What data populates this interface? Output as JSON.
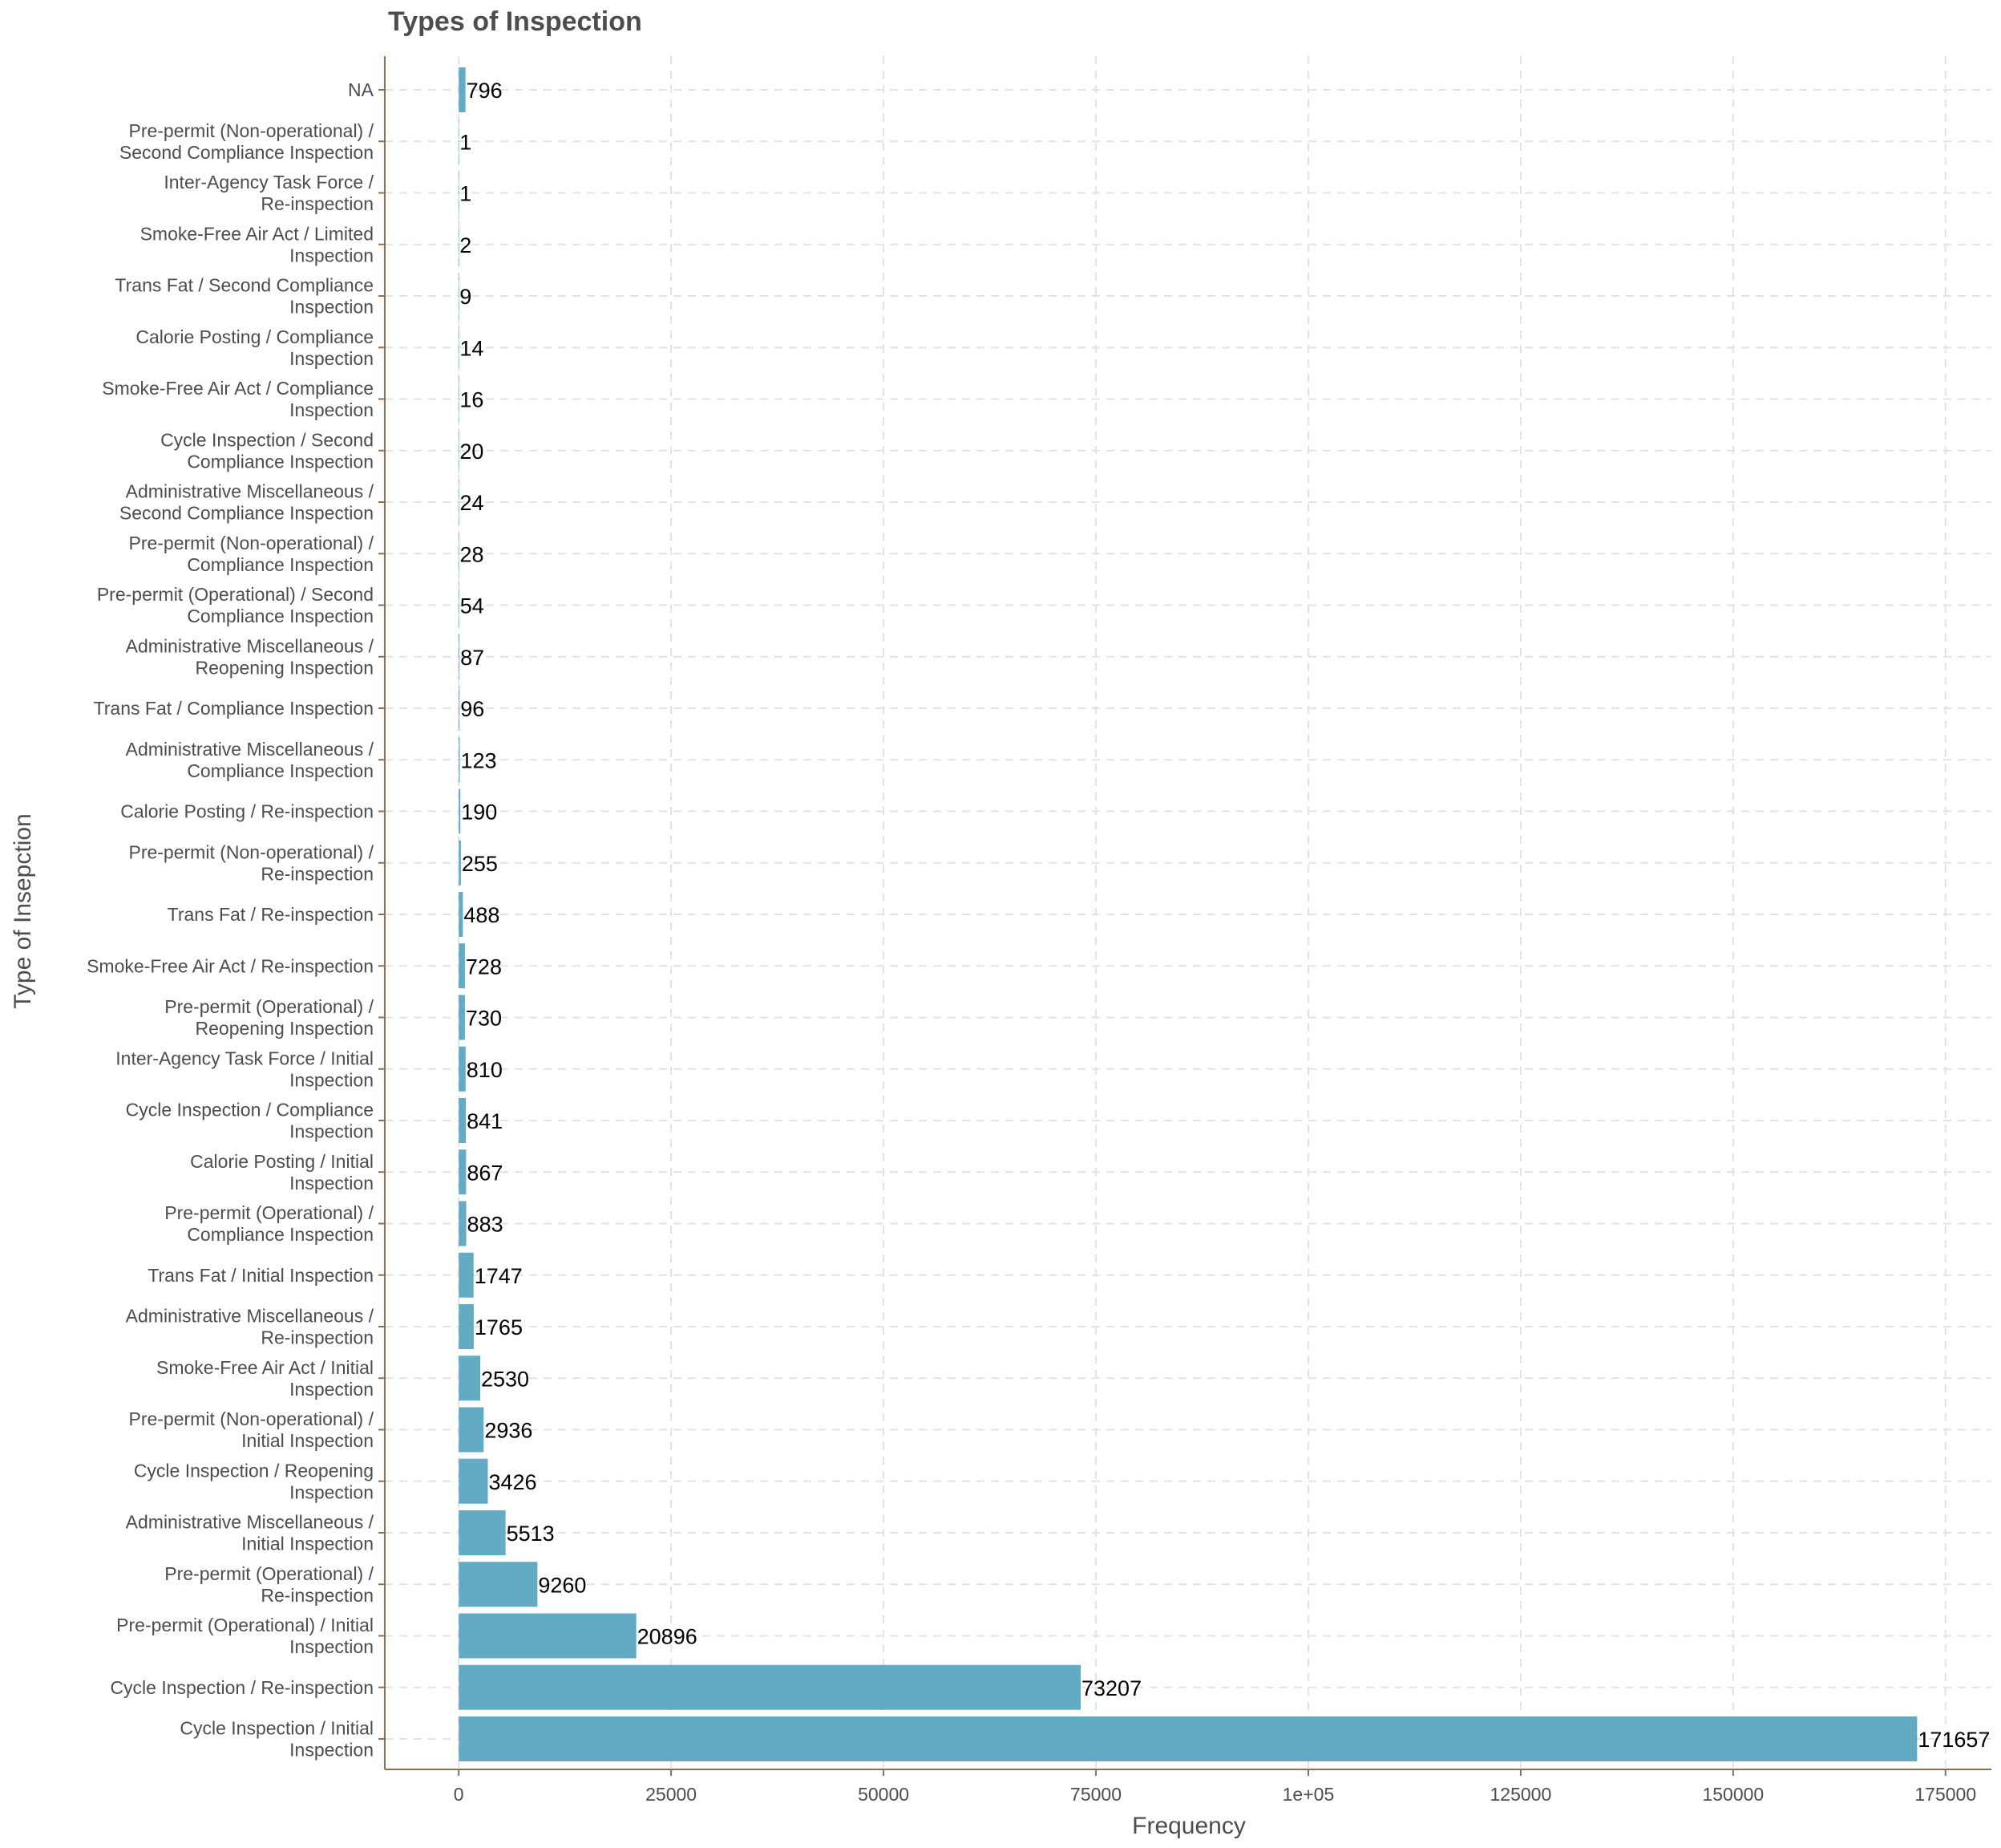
{
  "chart_data": {
    "type": "bar",
    "orientation": "horizontal",
    "title": "Types of Inspection",
    "xlabel": "Frequency",
    "ylabel": "Type of Insepction",
    "xlim": [
      -8700,
      180400
    ],
    "x_ticks": [
      0,
      25000,
      50000,
      75000,
      100000,
      125000,
      150000,
      175000
    ],
    "x_tick_labels": [
      "0",
      "25000",
      "50000",
      "75000",
      "1e+05",
      "125000",
      "150000",
      "175000"
    ],
    "grid": "dashed",
    "legend": "none",
    "bar_color": "#62abc3",
    "categories": [
      [
        "NA"
      ],
      [
        "Pre-permit (Non-operational) /",
        "Second Compliance Inspection"
      ],
      [
        "Inter-Agency Task Force /",
        "Re-inspection"
      ],
      [
        "Smoke-Free Air Act / Limited",
        "Inspection"
      ],
      [
        "Trans Fat / Second Compliance",
        "Inspection"
      ],
      [
        "Calorie Posting / Compliance",
        "Inspection"
      ],
      [
        "Smoke-Free Air Act / Compliance",
        "Inspection"
      ],
      [
        "Cycle Inspection / Second",
        "Compliance Inspection"
      ],
      [
        "Administrative Miscellaneous /",
        "Second Compliance Inspection"
      ],
      [
        "Pre-permit (Non-operational) /",
        "Compliance Inspection"
      ],
      [
        "Pre-permit (Operational) / Second",
        "Compliance Inspection"
      ],
      [
        "Administrative Miscellaneous /",
        "Reopening Inspection"
      ],
      [
        "Trans Fat / Compliance Inspection"
      ],
      [
        "Administrative Miscellaneous /",
        "Compliance Inspection"
      ],
      [
        "Calorie Posting / Re-inspection"
      ],
      [
        "Pre-permit (Non-operational) /",
        "Re-inspection"
      ],
      [
        "Trans Fat / Re-inspection"
      ],
      [
        "Smoke-Free Air Act / Re-inspection"
      ],
      [
        "Pre-permit (Operational) /",
        "Reopening Inspection"
      ],
      [
        "Inter-Agency Task Force / Initial",
        "Inspection"
      ],
      [
        "Cycle Inspection / Compliance",
        "Inspection"
      ],
      [
        "Calorie Posting / Initial",
        "Inspection"
      ],
      [
        "Pre-permit (Operational) /",
        "Compliance Inspection"
      ],
      [
        "Trans Fat / Initial Inspection"
      ],
      [
        "Administrative Miscellaneous /",
        "Re-inspection"
      ],
      [
        "Smoke-Free Air Act / Initial",
        "Inspection"
      ],
      [
        "Pre-permit (Non-operational) /",
        "Initial Inspection"
      ],
      [
        "Cycle Inspection / Reopening",
        "Inspection"
      ],
      [
        "Administrative Miscellaneous /",
        "Initial Inspection"
      ],
      [
        "Pre-permit (Operational) /",
        "Re-inspection"
      ],
      [
        "Pre-permit (Operational) / Initial",
        "Inspection"
      ],
      [
        "Cycle Inspection / Re-inspection"
      ],
      [
        "Cycle Inspection / Initial",
        "Inspection"
      ]
    ],
    "values": [
      796,
      1,
      1,
      2,
      9,
      14,
      16,
      20,
      24,
      28,
      54,
      87,
      96,
      123,
      190,
      255,
      488,
      728,
      730,
      810,
      841,
      867,
      883,
      1747,
      1765,
      2530,
      2936,
      3426,
      5513,
      9260,
      20896,
      73207,
      171657
    ]
  }
}
